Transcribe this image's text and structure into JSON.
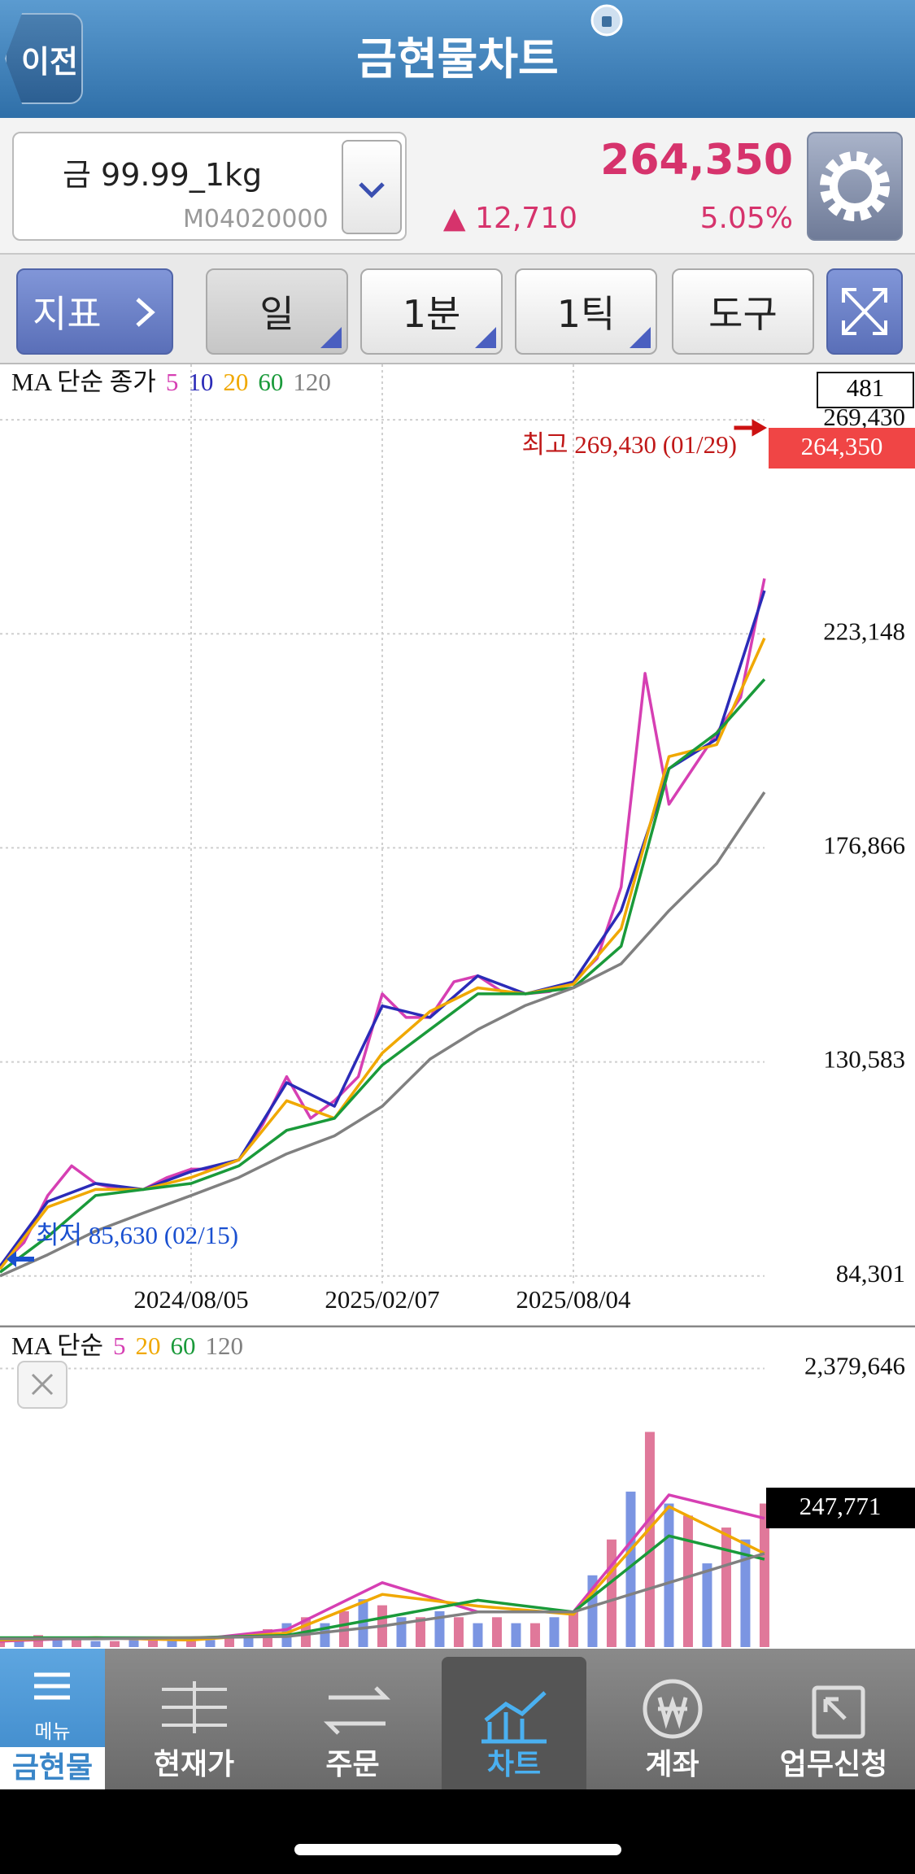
{
  "header": {
    "back": "이전",
    "title": "금현물차트"
  },
  "instrument": {
    "name": "금 99.99_1kg",
    "code": "M04020000",
    "price": "264,350",
    "change": "▲ 12,710",
    "change_pct": "5.05%"
  },
  "toolbar": {
    "buttons": [
      "지표",
      "일",
      "1분",
      "1틱",
      "도구"
    ]
  },
  "price_chart": {
    "type": "line",
    "legend_title": "MA 단순 종가",
    "series": [
      {
        "name": "5",
        "color": "#d63fb3",
        "x": [
          0,
          1,
          2,
          3,
          4,
          5,
          6,
          7,
          8,
          9,
          10,
          11,
          12,
          13,
          14,
          15,
          16,
          17,
          18,
          19,
          20,
          21,
          22,
          23,
          24,
          25,
          26,
          27,
          28,
          29,
          30,
          31,
          32
        ],
        "values": [
          86400,
          91500,
          101700,
          108100,
          104300,
          103000,
          103000,
          105600,
          107400,
          107400,
          109400,
          117100,
          127400,
          118400,
          122200,
          127400,
          145300,
          140200,
          140200,
          147900,
          149200,
          145800,
          145300,
          145800,
          147900,
          153000,
          168400,
          214600,
          186300,
          194000,
          201700,
          209400,
          235100
        ]
      },
      {
        "name": "10",
        "color": "#2b2bb8",
        "x": [
          0,
          2,
          4,
          6,
          8,
          10,
          12,
          14,
          16,
          18,
          20,
          22,
          24,
          26,
          28,
          30,
          32
        ],
        "values": [
          86400,
          100400,
          104300,
          103000,
          106900,
          109400,
          126100,
          121000,
          142700,
          140200,
          149200,
          145300,
          147900,
          163300,
          194000,
          200400,
          232500
        ]
      },
      {
        "name": "20",
        "color": "#f0a800",
        "x": [
          0,
          2,
          4,
          6,
          8,
          10,
          12,
          14,
          16,
          18,
          20,
          22,
          24,
          26,
          28,
          30,
          32
        ],
        "values": [
          85800,
          99200,
          103000,
          103000,
          105600,
          109400,
          122200,
          118400,
          132500,
          141500,
          146600,
          145300,
          147400,
          159400,
          196600,
          199200,
          222200
        ]
      },
      {
        "name": "60",
        "color": "#1a9a3a",
        "x": [
          0,
          2,
          4,
          6,
          8,
          10,
          12,
          14,
          16,
          18,
          20,
          22,
          24,
          26,
          28,
          30,
          32
        ],
        "values": [
          85100,
          92800,
          101700,
          103000,
          104300,
          108100,
          115800,
          118400,
          129900,
          137600,
          145300,
          145300,
          146600,
          155600,
          194000,
          201700,
          213300
        ]
      },
      {
        "name": "120",
        "color": "#808080",
        "x": [
          0,
          2,
          4,
          6,
          8,
          10,
          12,
          14,
          16,
          18,
          20,
          22,
          24,
          26,
          28,
          30,
          32
        ],
        "values": [
          84300,
          88900,
          94000,
          97900,
          101700,
          105600,
          110700,
          114600,
          121000,
          131200,
          137600,
          142800,
          146600,
          151800,
          163300,
          173500,
          188900
        ]
      }
    ],
    "xlim": [
      0,
      38.3
    ],
    "xticks": [
      {
        "value": 8,
        "label": "2024/08/05"
      },
      {
        "value": 16,
        "label": "2025/02/07"
      },
      {
        "value": 24,
        "label": "2025/08/04"
      }
    ],
    "ylim": [
      82500,
      280700
    ],
    "yticks": [
      {
        "value": 84301,
        "label": "84,301"
      },
      {
        "value": 130583,
        "label": "130,583"
      },
      {
        "value": 176866,
        "label": "176,866"
      },
      {
        "value": 223148,
        "label": "223,148"
      },
      {
        "value": 269430,
        "label": "269,430"
      }
    ],
    "grid": true,
    "high_label": "최고 269,430 (01/29)",
    "low_label": "최저 85,630 (02/15)",
    "last_price_label": "264,350",
    "count_label": "481"
  },
  "volume_chart": {
    "type": "bar",
    "legend_title": "MA 단순",
    "color": "#e0789a",
    "x": [
      0,
      0.8,
      1.6,
      2.4,
      3.2,
      4,
      4.8,
      5.6,
      6.4,
      7.2,
      8,
      8.8,
      9.6,
      10.4,
      11.2,
      12,
      12.8,
      13.6,
      14.4,
      15.2,
      16,
      16.8,
      17.6,
      18.4,
      19.2,
      20,
      20.8,
      21.6,
      22.4,
      23.2,
      24,
      24.8,
      25.6,
      26.4,
      27.2,
      28,
      28.8,
      29.6,
      30.4,
      31.2,
      32
    ],
    "values": [
      51000,
      82000,
      102000,
      82000,
      61000,
      51000,
      51000,
      61000,
      82000,
      61000,
      51000,
      61000,
      82000,
      102000,
      153000,
      204000,
      255000,
      204000,
      306000,
      409000,
      357000,
      255000,
      255000,
      306000,
      255000,
      204000,
      255000,
      204000,
      204000,
      255000,
      306000,
      613000,
      919000,
      1328000,
      1838000,
      1226000,
      1123000,
      715000,
      1021000,
      919000,
      1226000
    ],
    "series": [
      {
        "name": "5",
        "color": "#d63fb3",
        "x": [
          0,
          4,
          8,
          12,
          16,
          20,
          24,
          28,
          32
        ],
        "values": [
          50000,
          80000,
          60000,
          150000,
          550000,
          300000,
          300000,
          1300000,
          1100000
        ]
      },
      {
        "name": "20",
        "color": "#f0a800",
        "x": [
          0,
          4,
          8,
          12,
          16,
          20,
          24,
          28,
          32
        ],
        "values": [
          60000,
          80000,
          60000,
          120000,
          450000,
          350000,
          280000,
          1200000,
          800000
        ]
      },
      {
        "name": "60",
        "color": "#1a9a3a",
        "x": [
          0,
          4,
          8,
          12,
          16,
          20,
          24,
          28,
          32
        ],
        "values": [
          80000,
          80000,
          80000,
          100000,
          250000,
          400000,
          300000,
          950000,
          750000
        ]
      },
      {
        "name": "120",
        "color": "#808080",
        "x": [
          0,
          4,
          8,
          12,
          16,
          20,
          24,
          28,
          32
        ],
        "values": [
          70000,
          70000,
          80000,
          90000,
          180000,
          300000,
          300000,
          550000,
          800000
        ]
      }
    ],
    "xlim": [
      0,
      38.3
    ],
    "ylim": [
      0,
      2716600
    ],
    "yticks": [
      {
        "value": 2379646,
        "label": "2,379,646"
      }
    ],
    "grid": true,
    "last_label": "247,771"
  },
  "tab_bar": {
    "items": [
      {
        "sub": "메뉴",
        "label": "금현물"
      },
      {
        "label": "현재가"
      },
      {
        "label": "주문"
      },
      {
        "label": "차트"
      },
      {
        "label": "계좌"
      },
      {
        "label": "업무신청"
      }
    ]
  }
}
